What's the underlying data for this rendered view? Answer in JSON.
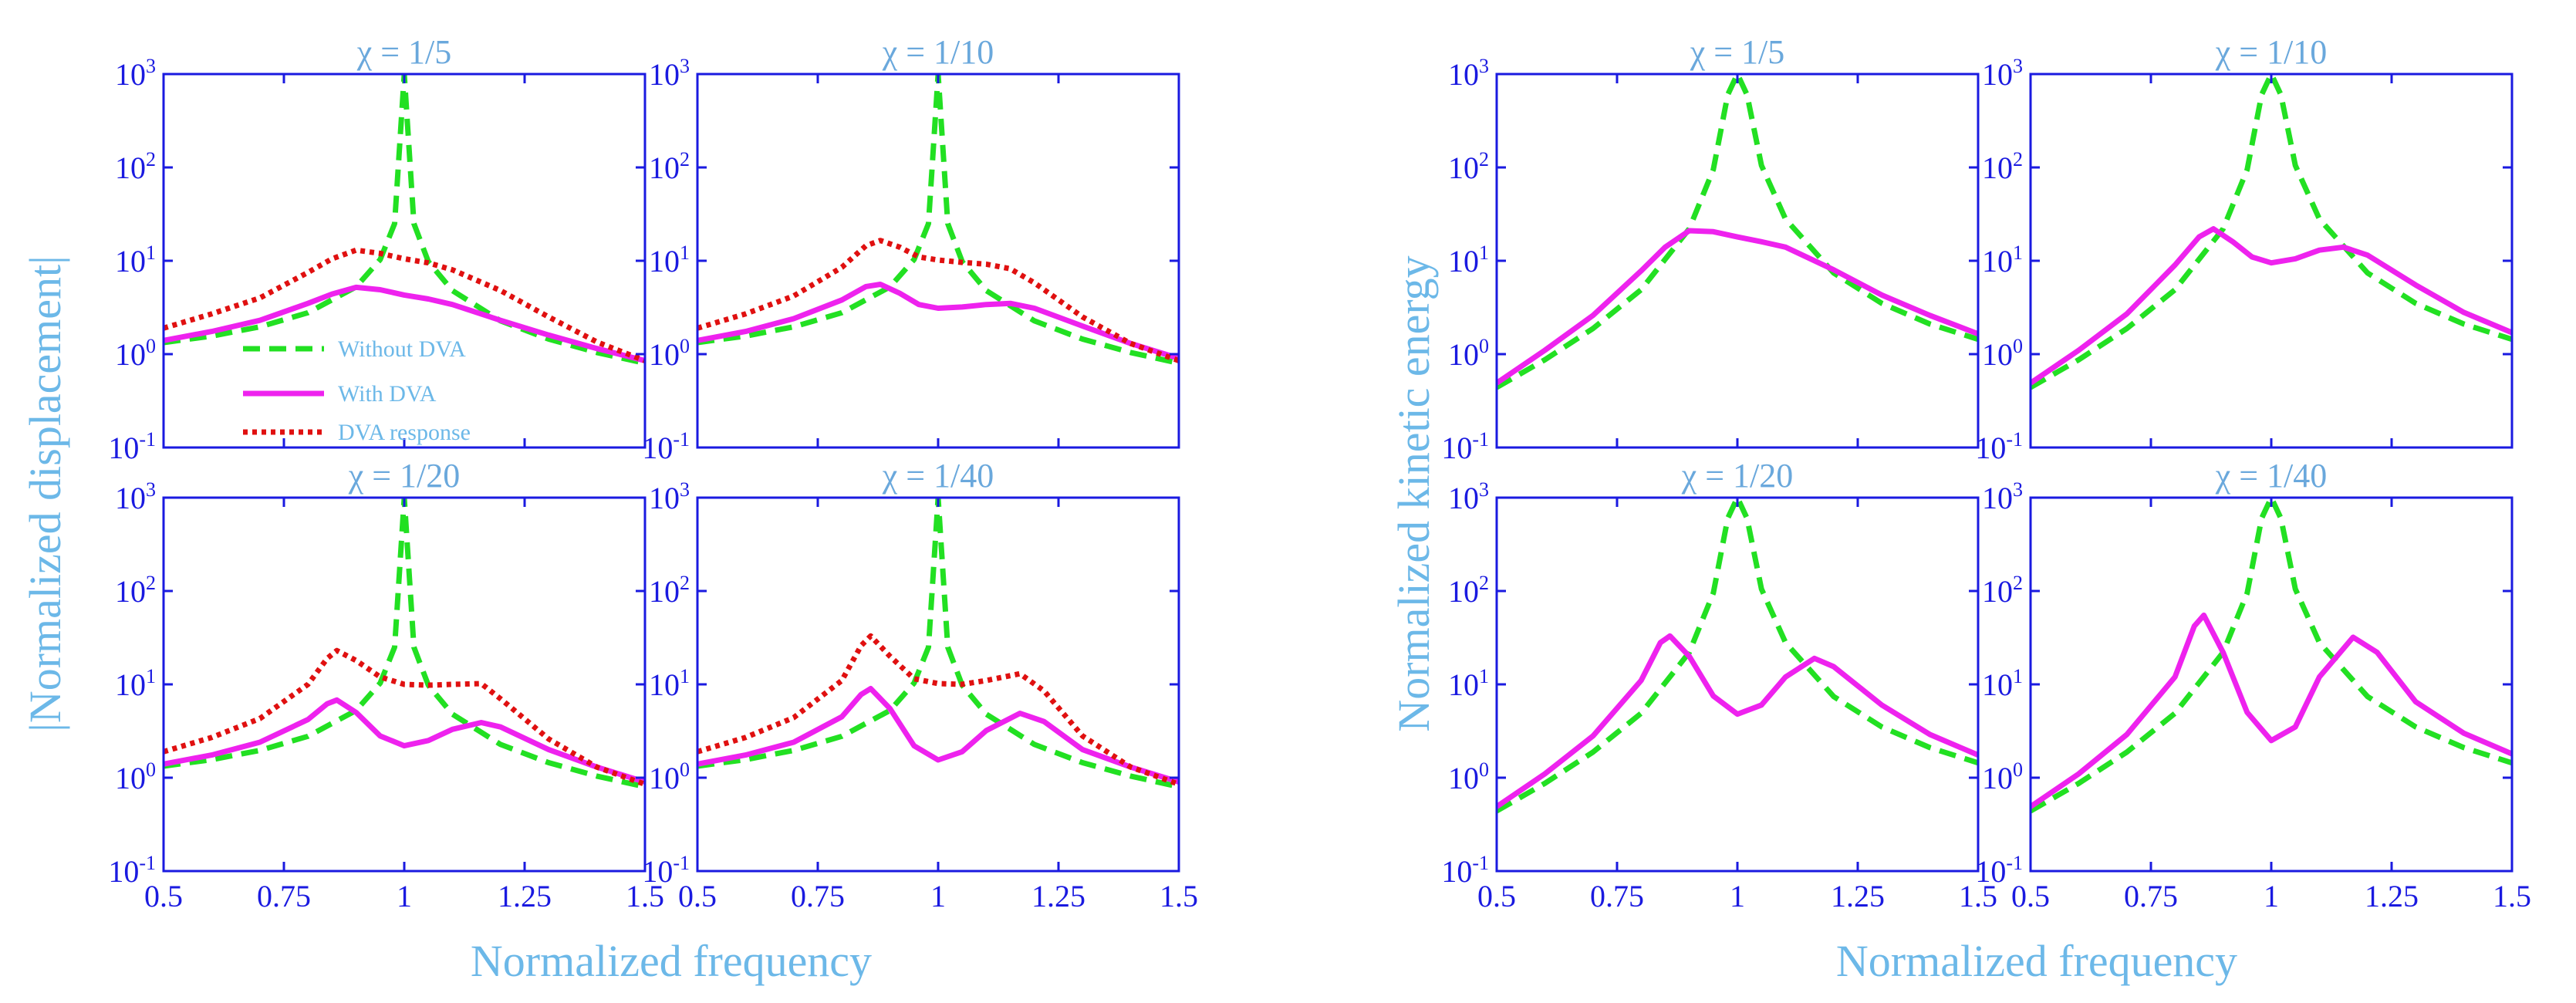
{
  "figure": {
    "left_group": {
      "ylabel": "|Normalized  displacement|",
      "xlabel": "Normalized  frequency"
    },
    "right_group": {
      "ylabel": "Normalized kinetic energy",
      "xlabel": "Normalized  frequency"
    }
  },
  "legend": {
    "without": "Without DVA",
    "with": "With DVA",
    "dva": "DVA response"
  },
  "colors": {
    "without": "#22e022",
    "with": "#ee22ee",
    "dva": "#e01010",
    "axes": "#1a1ae0"
  },
  "chart_data": [
    {
      "type": "line",
      "title": "χ = 1/5",
      "group": "displacement",
      "xlim": [
        0.5,
        1.5
      ],
      "ylim": [
        0.1,
        1000
      ],
      "yscale": "log",
      "xticks": [
        "0.5",
        "0.75",
        "1",
        "1.25",
        "1.5"
      ],
      "yticks": [
        "10^-1",
        "10^0",
        "10^1",
        "10^2",
        "10^3"
      ],
      "series": [
        {
          "name": "Without DVA",
          "x": [
            0.5,
            0.6,
            0.7,
            0.8,
            0.9,
            0.95,
            0.98,
            1.0,
            1.02,
            1.05,
            1.1,
            1.2,
            1.3,
            1.4,
            1.5
          ],
          "y": [
            1.33,
            1.56,
            1.96,
            2.78,
            5.26,
            10.3,
            25,
            1000,
            25,
            9.8,
            4.8,
            2.27,
            1.45,
            1.04,
            0.8
          ]
        },
        {
          "name": "With DVA",
          "x": [
            0.5,
            0.6,
            0.7,
            0.8,
            0.85,
            0.9,
            0.95,
            1.0,
            1.05,
            1.1,
            1.2,
            1.3,
            1.4,
            1.5
          ],
          "y": [
            1.4,
            1.75,
            2.3,
            3.5,
            4.4,
            5.2,
            4.9,
            4.3,
            3.9,
            3.4,
            2.3,
            1.6,
            1.15,
            0.85
          ]
        },
        {
          "name": "DVA response",
          "x": [
            0.5,
            0.6,
            0.7,
            0.8,
            0.85,
            0.9,
            0.95,
            1.0,
            1.05,
            1.1,
            1.2,
            1.3,
            1.4,
            1.5
          ],
          "y": [
            1.9,
            2.7,
            4.0,
            7.5,
            10.5,
            13.0,
            12.0,
            10.5,
            9.5,
            8.0,
            4.8,
            2.5,
            1.35,
            0.85
          ]
        }
      ]
    },
    {
      "type": "line",
      "title": "χ = 1/10",
      "group": "displacement",
      "xlim": [
        0.5,
        1.5
      ],
      "ylim": [
        0.1,
        1000
      ],
      "yscale": "log",
      "xticks": [
        "0.5",
        "0.75",
        "1",
        "1.25",
        "1.5"
      ],
      "yticks": [
        "10^-1",
        "10^0",
        "10^1",
        "10^2",
        "10^3"
      ],
      "series": [
        {
          "name": "Without DVA",
          "x": [
            0.5,
            0.6,
            0.7,
            0.8,
            0.9,
            0.95,
            0.98,
            1.0,
            1.02,
            1.05,
            1.1,
            1.2,
            1.3,
            1.4,
            1.5
          ],
          "y": [
            1.33,
            1.56,
            1.96,
            2.78,
            5.26,
            10.3,
            25,
            1000,
            25,
            9.8,
            4.8,
            2.27,
            1.45,
            1.04,
            0.8
          ]
        },
        {
          "name": "With DVA",
          "x": [
            0.5,
            0.6,
            0.7,
            0.8,
            0.85,
            0.88,
            0.92,
            0.96,
            1.0,
            1.05,
            1.1,
            1.15,
            1.2,
            1.3,
            1.4,
            1.5
          ],
          "y": [
            1.4,
            1.75,
            2.4,
            3.8,
            5.3,
            5.6,
            4.5,
            3.4,
            3.1,
            3.2,
            3.4,
            3.5,
            3.1,
            2.0,
            1.3,
            0.9
          ]
        },
        {
          "name": "DVA response",
          "x": [
            0.5,
            0.6,
            0.7,
            0.8,
            0.85,
            0.88,
            0.92,
            0.96,
            1.0,
            1.05,
            1.1,
            1.15,
            1.2,
            1.3,
            1.4,
            1.5
          ],
          "y": [
            1.9,
            2.7,
            4.2,
            8.5,
            14.5,
            16.5,
            14.0,
            11.0,
            10.2,
            9.6,
            9.2,
            8.2,
            5.8,
            2.5,
            1.3,
            0.85
          ]
        }
      ]
    },
    {
      "type": "line",
      "title": "χ = 1/20",
      "group": "displacement",
      "xlim": [
        0.5,
        1.5
      ],
      "ylim": [
        0.1,
        1000
      ],
      "yscale": "log",
      "xticks": [
        "0.5",
        "0.75",
        "1",
        "1.25",
        "1.5"
      ],
      "yticks": [
        "10^-1",
        "10^0",
        "10^1",
        "10^2",
        "10^3"
      ],
      "series": [
        {
          "name": "Without DVA",
          "x": [
            0.5,
            0.6,
            0.7,
            0.8,
            0.9,
            0.95,
            0.98,
            1.0,
            1.02,
            1.05,
            1.1,
            1.2,
            1.3,
            1.4,
            1.5
          ],
          "y": [
            1.33,
            1.56,
            1.96,
            2.78,
            5.26,
            10.3,
            25,
            1000,
            25,
            9.8,
            4.8,
            2.27,
            1.45,
            1.04,
            0.8
          ]
        },
        {
          "name": "With DVA",
          "x": [
            0.5,
            0.6,
            0.7,
            0.8,
            0.84,
            0.86,
            0.9,
            0.95,
            1.0,
            1.05,
            1.1,
            1.16,
            1.2,
            1.3,
            1.4,
            1.5
          ],
          "y": [
            1.4,
            1.75,
            2.4,
            4.2,
            6.2,
            6.8,
            5.0,
            2.8,
            2.2,
            2.5,
            3.3,
            3.9,
            3.5,
            2.0,
            1.3,
            0.9
          ]
        },
        {
          "name": "DVA response",
          "x": [
            0.5,
            0.6,
            0.7,
            0.8,
            0.84,
            0.86,
            0.9,
            0.95,
            1.0,
            1.05,
            1.1,
            1.16,
            1.2,
            1.3,
            1.4,
            1.5
          ],
          "y": [
            1.9,
            2.7,
            4.3,
            10.0,
            19.0,
            23.0,
            18.0,
            12.0,
            10.0,
            9.8,
            10.0,
            10.2,
            7.0,
            2.6,
            1.3,
            0.85
          ]
        }
      ]
    },
    {
      "type": "line",
      "title": "χ = 1/40",
      "group": "displacement",
      "xlim": [
        0.5,
        1.5
      ],
      "ylim": [
        0.1,
        1000
      ],
      "yscale": "log",
      "xticks": [
        "0.5",
        "0.75",
        "1",
        "1.25",
        "1.5"
      ],
      "yticks": [
        "10^-1",
        "10^0",
        "10^1",
        "10^2",
        "10^3"
      ],
      "series": [
        {
          "name": "Without DVA",
          "x": [
            0.5,
            0.6,
            0.7,
            0.8,
            0.9,
            0.95,
            0.98,
            1.0,
            1.02,
            1.05,
            1.1,
            1.2,
            1.3,
            1.4,
            1.5
          ],
          "y": [
            1.33,
            1.56,
            1.96,
            2.78,
            5.26,
            10.3,
            25,
            1000,
            25,
            9.8,
            4.8,
            2.27,
            1.45,
            1.04,
            0.8
          ]
        },
        {
          "name": "With DVA",
          "x": [
            0.5,
            0.6,
            0.7,
            0.8,
            0.84,
            0.86,
            0.9,
            0.95,
            1.0,
            1.05,
            1.1,
            1.17,
            1.22,
            1.3,
            1.4,
            1.5
          ],
          "y": [
            1.4,
            1.75,
            2.4,
            4.5,
            7.8,
            9.0,
            5.5,
            2.2,
            1.55,
            1.9,
            3.2,
            4.9,
            4.0,
            2.0,
            1.3,
            0.9
          ]
        },
        {
          "name": "DVA response",
          "x": [
            0.5,
            0.6,
            0.7,
            0.8,
            0.84,
            0.86,
            0.9,
            0.95,
            1.0,
            1.05,
            1.1,
            1.17,
            1.22,
            1.3,
            1.4,
            1.5
          ],
          "y": [
            1.9,
            2.7,
            4.4,
            11.0,
            26.0,
            33.0,
            20.0,
            11.5,
            10.2,
            10.0,
            11.0,
            13.0,
            8.5,
            2.8,
            1.3,
            0.85
          ]
        }
      ]
    },
    {
      "type": "line",
      "title": "χ = 1/5",
      "group": "kinetic_energy",
      "xlim": [
        0.5,
        1.5
      ],
      "ylim": [
        0.1,
        1000
      ],
      "yscale": "log",
      "xticks": [
        "0.5",
        "0.75",
        "1",
        "1.25",
        "1.5"
      ],
      "yticks": [
        "10^-1",
        "10^0",
        "10^1",
        "10^2",
        "10^3"
      ],
      "series": [
        {
          "name": "Without DVA",
          "x": [
            0.5,
            0.6,
            0.7,
            0.8,
            0.9,
            0.95,
            0.98,
            1.0,
            1.02,
            1.05,
            1.1,
            1.2,
            1.3,
            1.4,
            1.5
          ],
          "y": [
            0.44,
            0.87,
            1.88,
            4.9,
            22,
            95,
            600,
            1000,
            600,
            105,
            28,
            7.4,
            3.5,
            2.1,
            1.44
          ]
        },
        {
          "name": "With DVA",
          "x": [
            0.5,
            0.6,
            0.7,
            0.8,
            0.85,
            0.9,
            0.95,
            1.0,
            1.05,
            1.1,
            1.2,
            1.3,
            1.4,
            1.5
          ],
          "y": [
            0.49,
            1.1,
            2.6,
            7.8,
            14.0,
            21.0,
            20.5,
            18.0,
            16.0,
            14.0,
            8.0,
            4.3,
            2.6,
            1.65
          ]
        }
      ]
    },
    {
      "type": "line",
      "title": "χ = 1/10",
      "group": "kinetic_energy",
      "xlim": [
        0.5,
        1.5
      ],
      "ylim": [
        0.1,
        1000
      ],
      "yscale": "log",
      "xticks": [
        "0.5",
        "0.75",
        "1",
        "1.25",
        "1.5"
      ],
      "yticks": [
        "10^-1",
        "10^0",
        "10^1",
        "10^2",
        "10^3"
      ],
      "series": [
        {
          "name": "Without DVA",
          "x": [
            0.5,
            0.6,
            0.7,
            0.8,
            0.9,
            0.95,
            0.98,
            1.0,
            1.02,
            1.05,
            1.1,
            1.2,
            1.3,
            1.4,
            1.5
          ],
          "y": [
            0.44,
            0.87,
            1.88,
            4.9,
            22,
            95,
            600,
            1000,
            600,
            105,
            28,
            7.4,
            3.5,
            2.1,
            1.44
          ]
        },
        {
          "name": "With DVA",
          "x": [
            0.5,
            0.6,
            0.7,
            0.8,
            0.85,
            0.88,
            0.92,
            0.96,
            1.0,
            1.05,
            1.1,
            1.15,
            1.2,
            1.3,
            1.4,
            1.5
          ],
          "y": [
            0.49,
            1.1,
            2.7,
            9.0,
            18.0,
            22.0,
            16.0,
            11.0,
            9.5,
            10.5,
            13.0,
            14.0,
            11.5,
            5.5,
            2.8,
            1.7
          ]
        }
      ]
    },
    {
      "type": "line",
      "title": "χ = 1/20",
      "group": "kinetic_energy",
      "xlim": [
        0.5,
        1.5
      ],
      "ylim": [
        0.1,
        1000
      ],
      "yscale": "log",
      "xticks": [
        "0.5",
        "0.75",
        "1",
        "1.25",
        "1.5"
      ],
      "yticks": [
        "10^-1",
        "10^0",
        "10^1",
        "10^2",
        "10^3"
      ],
      "series": [
        {
          "name": "Without DVA",
          "x": [
            0.5,
            0.6,
            0.7,
            0.8,
            0.9,
            0.95,
            0.98,
            1.0,
            1.02,
            1.05,
            1.1,
            1.2,
            1.3,
            1.4,
            1.5
          ],
          "y": [
            0.44,
            0.87,
            1.88,
            4.9,
            22,
            95,
            600,
            1000,
            600,
            105,
            28,
            7.4,
            3.5,
            2.1,
            1.44
          ]
        },
        {
          "name": "With DVA",
          "x": [
            0.5,
            0.6,
            0.7,
            0.8,
            0.84,
            0.86,
            0.9,
            0.95,
            1.0,
            1.05,
            1.1,
            1.16,
            1.2,
            1.3,
            1.4,
            1.5
          ],
          "y": [
            0.49,
            1.1,
            2.8,
            11.0,
            28.0,
            33.0,
            20.0,
            7.5,
            4.8,
            6.0,
            12.0,
            19.0,
            15.5,
            6.0,
            2.9,
            1.75
          ]
        }
      ]
    },
    {
      "type": "line",
      "title": "χ = 1/40",
      "group": "kinetic_energy",
      "xlim": [
        0.5,
        1.5
      ],
      "ylim": [
        0.1,
        1000
      ],
      "yscale": "log",
      "xticks": [
        "0.5",
        "0.75",
        "1",
        "1.25",
        "1.5"
      ],
      "yticks": [
        "10^-1",
        "10^0",
        "10^1",
        "10^2",
        "10^3"
      ],
      "series": [
        {
          "name": "Without DVA",
          "x": [
            0.5,
            0.6,
            0.7,
            0.8,
            0.9,
            0.95,
            0.98,
            1.0,
            1.02,
            1.05,
            1.1,
            1.2,
            1.3,
            1.4,
            1.5
          ],
          "y": [
            0.44,
            0.87,
            1.88,
            4.9,
            22,
            95,
            600,
            1000,
            600,
            105,
            28,
            7.4,
            3.5,
            2.1,
            1.44
          ]
        },
        {
          "name": "With DVA",
          "x": [
            0.5,
            0.6,
            0.7,
            0.8,
            0.84,
            0.86,
            0.9,
            0.95,
            1.0,
            1.05,
            1.1,
            1.17,
            1.22,
            1.3,
            1.4,
            1.5
          ],
          "y": [
            0.49,
            1.1,
            2.9,
            12.0,
            42.0,
            55.0,
            22.0,
            5.0,
            2.5,
            3.5,
            12.0,
            32.0,
            22.0,
            6.5,
            3.0,
            1.8
          ]
        }
      ]
    }
  ]
}
